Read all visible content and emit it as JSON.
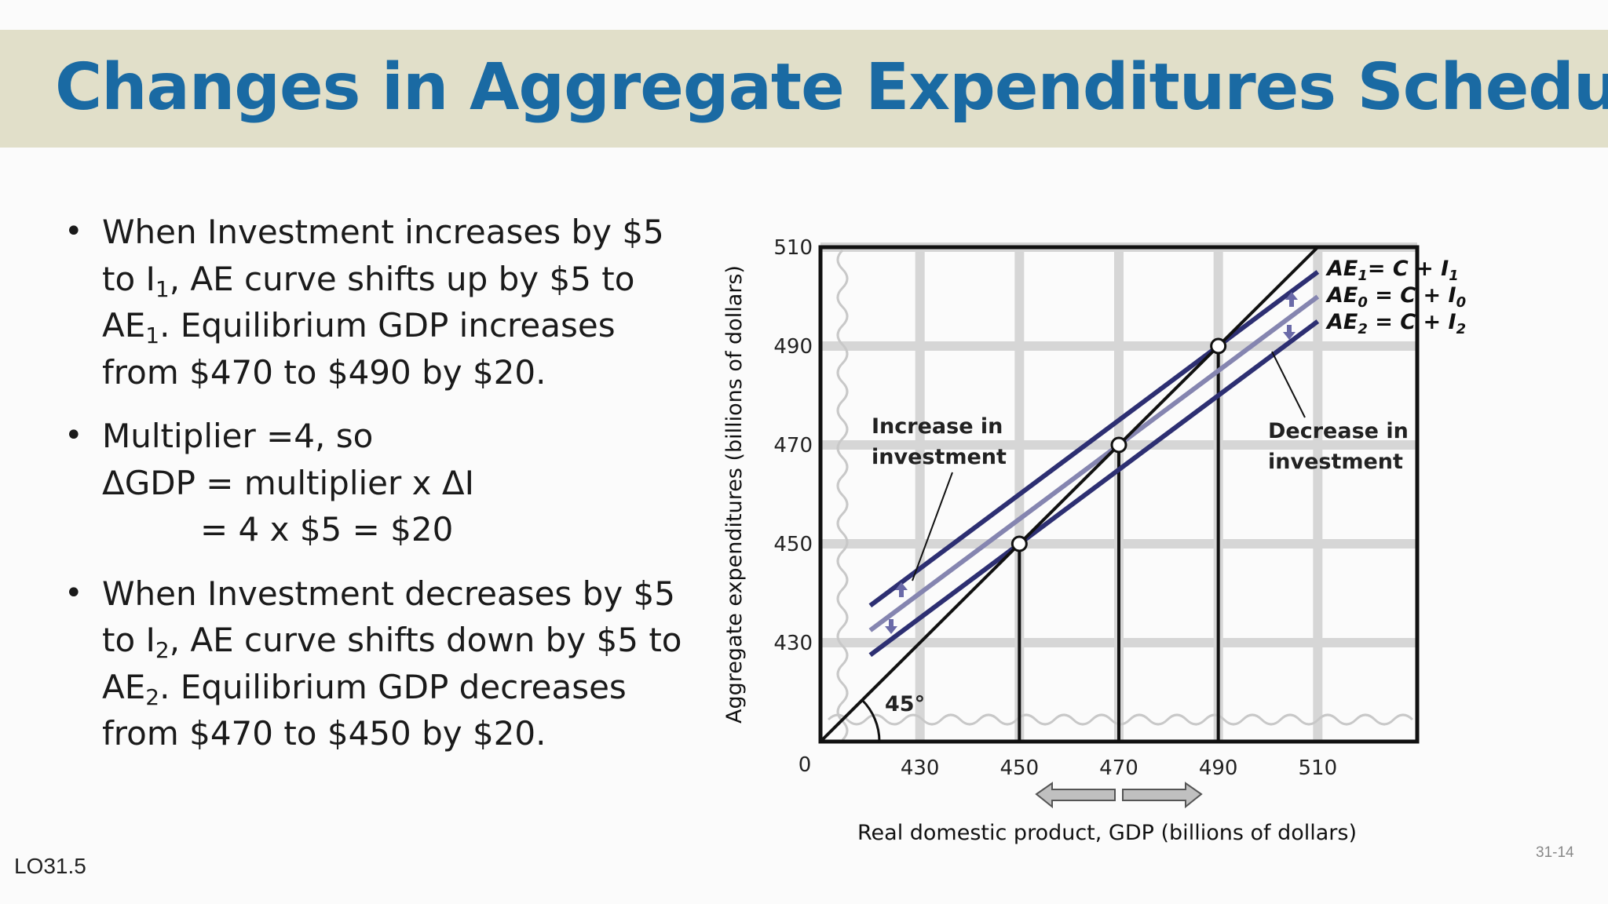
{
  "slide": {
    "title": "Changes in Aggregate Expenditures Schedule",
    "learning_objective": "LO31.5",
    "page": "31-14",
    "colors": {
      "title": "#1a6aa3",
      "title_band": "#e1dfc9"
    }
  },
  "bullets": [
    {
      "lines": [
        [
          "When Investment increases by $5"
        ],
        [
          "to I",
          "1",
          ", AE curve shifts up by $5 to"
        ],
        [
          "AE",
          "1",
          ".  Equilibrium GDP increases"
        ],
        [
          "from $470 to $490 by $20."
        ]
      ]
    },
    {
      "lines": [
        [
          "Multiplier =4, so"
        ],
        [
          "ΔGDP = multiplier x ΔI"
        ],
        [
          "= 4 x $5 = $20"
        ]
      ]
    },
    {
      "lines": [
        [
          "When Investment decreases by $5"
        ],
        [
          "to I",
          "2",
          ", AE curve shifts down by $5 to"
        ],
        [
          "AE",
          "2",
          ".  Equilibrium GDP decreases"
        ],
        [
          "from $470 to $450 by $20."
        ]
      ]
    }
  ],
  "chart_data": {
    "type": "line",
    "xlabel": "Real domestic product, GDP (billions of dollars)",
    "ylabel": "Aggregate expenditures (billions of dollars)",
    "origin_label": "0",
    "xlim": [
      410,
      530
    ],
    "ylim": [
      410,
      510
    ],
    "x_ticks": [
      430,
      450,
      470,
      490,
      510
    ],
    "y_ticks": [
      430,
      450,
      470,
      490,
      510
    ],
    "grid": true,
    "series": [
      {
        "name": "45°",
        "color": "#111111",
        "x": [
          410,
          510
        ],
        "y": [
          410,
          510
        ]
      },
      {
        "name": "AE1 = C + I1",
        "color": "#2d2f72",
        "x": [
          420,
          510
        ],
        "y": [
          437.5,
          505
        ]
      },
      {
        "name": "AE0 = C + I0",
        "color": "#8585b0",
        "x": [
          420,
          510
        ],
        "y": [
          432.5,
          500
        ]
      },
      {
        "name": "AE2 = C + I2",
        "color": "#2d2f72",
        "x": [
          420,
          510
        ],
        "y": [
          427.5,
          495
        ]
      }
    ],
    "equilibria": [
      {
        "x": 450,
        "y": 450
      },
      {
        "x": 470,
        "y": 470
      },
      {
        "x": 490,
        "y": 490
      }
    ],
    "legend": [
      {
        "text": "AE",
        "sub": "1",
        "mid": "= C + ",
        "i": "I",
        "isub": "1"
      },
      {
        "text": "AE",
        "sub": "0",
        "mid": " = C + ",
        "i": "I",
        "isub": "0"
      },
      {
        "text": "AE",
        "sub": "2",
        "mid": " = C + ",
        "i": "I",
        "isub": "2"
      }
    ],
    "annotations": {
      "increase": [
        "Increase in",
        "investment"
      ],
      "decrease": [
        "Decrease in",
        "investment"
      ],
      "angle": "45°"
    }
  }
}
